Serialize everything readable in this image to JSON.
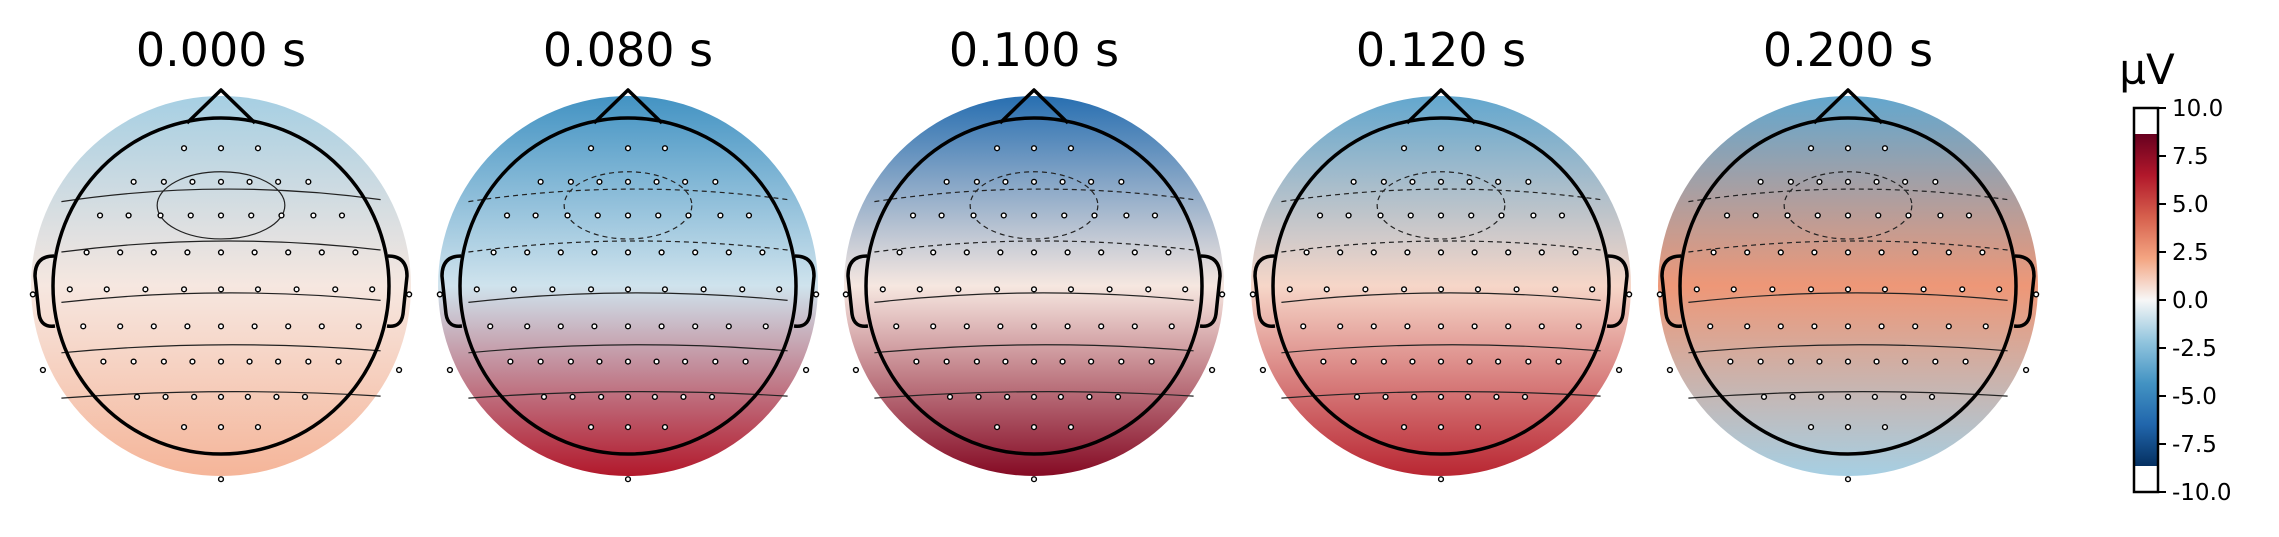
{
  "chart_data": {
    "type": "heatmap",
    "subtype": "eeg-topomap",
    "colormap": "RdBu_r",
    "colors": {
      "negative": "#053061",
      "zero": "#f7f7f7",
      "positive": "#67001f"
    },
    "colorbar": {
      "label": "µV",
      "range": [
        -10.0,
        10.0
      ],
      "ticks": [
        "10.0",
        "7.5",
        "5.0",
        "2.5",
        "0.0",
        "-2.5",
        "-5.0",
        "-7.5",
        "-10.0"
      ]
    },
    "panels": [
      {
        "title": "0.000 s",
        "frontal": -2.0,
        "central": 0.5,
        "posterior": 2.0,
        "min_uv": -2.5,
        "max_uv": 2.5
      },
      {
        "title": "0.080 s",
        "frontal": -5.0,
        "central": -1.0,
        "posterior": 7.5,
        "min_uv": -6.0,
        "max_uv": 9.0
      },
      {
        "title": "0.100 s",
        "frontal": -7.0,
        "central": 0.5,
        "posterior": 9.0,
        "min_uv": -8.0,
        "max_uv": 10.0
      },
      {
        "title": "0.120 s",
        "frontal": -4.0,
        "central": 1.0,
        "posterior": 7.0,
        "min_uv": -5.0,
        "max_uv": 8.0
      },
      {
        "title": "0.200 s",
        "frontal": -4.0,
        "central": 3.0,
        "posterior": -2.0,
        "min_uv": -5.0,
        "max_uv": 3.5
      }
    ]
  }
}
